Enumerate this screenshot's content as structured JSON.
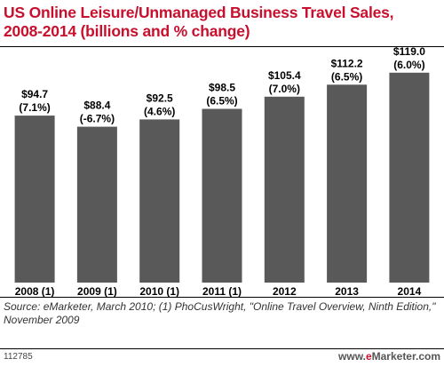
{
  "chart_title": {
    "line1": "US Online Leisure/Unmanaged Business Travel Sales,",
    "line2": "2008-2014 (billions and % change)"
  },
  "chart_data": {
    "type": "bar",
    "title": "US Online Leisure/Unmanaged Business Travel Sales, 2008-2014 (billions and % change)",
    "categories": [
      "2008 (1)",
      "2009 (1)",
      "2010 (1)",
      "2011 (1)",
      "2012",
      "2013",
      "2014"
    ],
    "values": [
      94.7,
      88.4,
      92.5,
      98.5,
      105.4,
      112.2,
      119.0
    ],
    "value_labels": [
      "$94.7",
      "$88.4",
      "$92.5",
      "$98.5",
      "$105.4",
      "$112.2",
      "$119.0"
    ],
    "change_labels": [
      "(7.1%)",
      "(-6.7%)",
      "(4.6%)",
      "(6.5%)",
      "(7.0%)",
      "(6.5%)",
      "(6.0%)"
    ],
    "ylim": [
      0,
      130
    ],
    "bar_color": "#595959"
  },
  "source_note": "Source: eMarketer, March 2010; (1) PhoCusWright, \"Online Travel Overview, Ninth Edition,\" November 2009",
  "footer": {
    "id": "112785",
    "brand_prefix": "www.",
    "brand_e": "e",
    "brand_suffix": "Marketer.com"
  }
}
